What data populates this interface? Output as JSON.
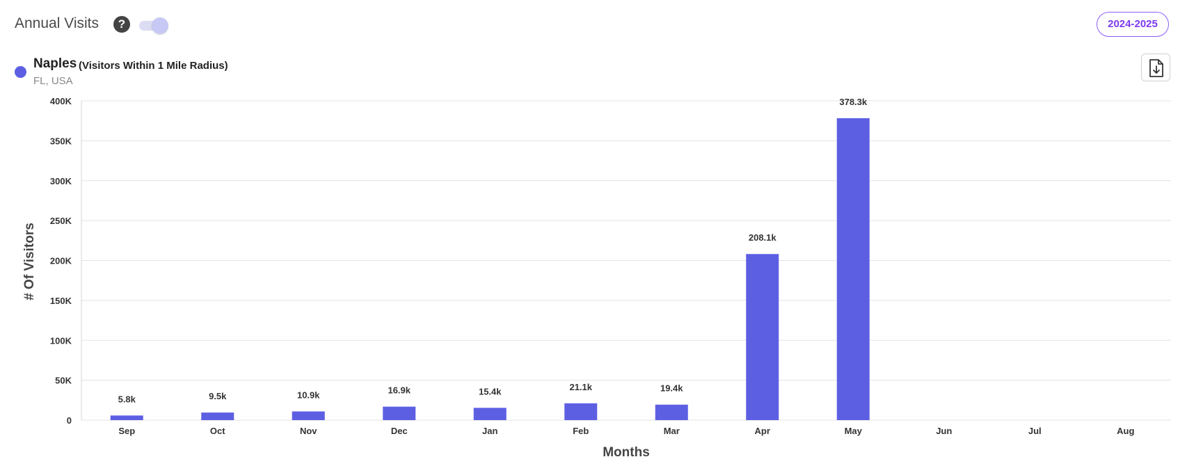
{
  "header": {
    "title": "Annual Visits",
    "help_icon": "question-circle-icon",
    "toggle_on": true,
    "year_button": "2024-2025"
  },
  "legend": {
    "name": "Naples",
    "subtitle": "(Visitors Within 1 Mile Radius)",
    "location": "FL, USA",
    "color": "#5d5fe3"
  },
  "download_icon": "download-file-icon",
  "chart_data": {
    "type": "bar",
    "categories": [
      "Sep",
      "Oct",
      "Nov",
      "Dec",
      "Jan",
      "Feb",
      "Mar",
      "Apr",
      "May",
      "Jun",
      "Jul",
      "Aug"
    ],
    "series": [
      {
        "values": [
          5800,
          9500,
          10900,
          16900,
          15400,
          21100,
          19400,
          208100,
          378300,
          null,
          null,
          null
        ],
        "labels": [
          "5.8k",
          "9.5k",
          "10.9k",
          "16.9k",
          "15.4k",
          "21.1k",
          "19.4k",
          "208.1k",
          "378.3k",
          null,
          null,
          null
        ],
        "color": "#5d5fe3"
      }
    ],
    "xlabel": "Months",
    "ylabel": "# Of Visitors",
    "ylim": [
      0,
      400000
    ],
    "yticks": [
      0,
      50000,
      100000,
      150000,
      200000,
      250000,
      300000,
      350000,
      400000
    ],
    "ytick_labels": [
      "0",
      "50K",
      "100K",
      "150K",
      "200K",
      "250K",
      "300K",
      "350K",
      "400K"
    ],
    "grid": true
  }
}
